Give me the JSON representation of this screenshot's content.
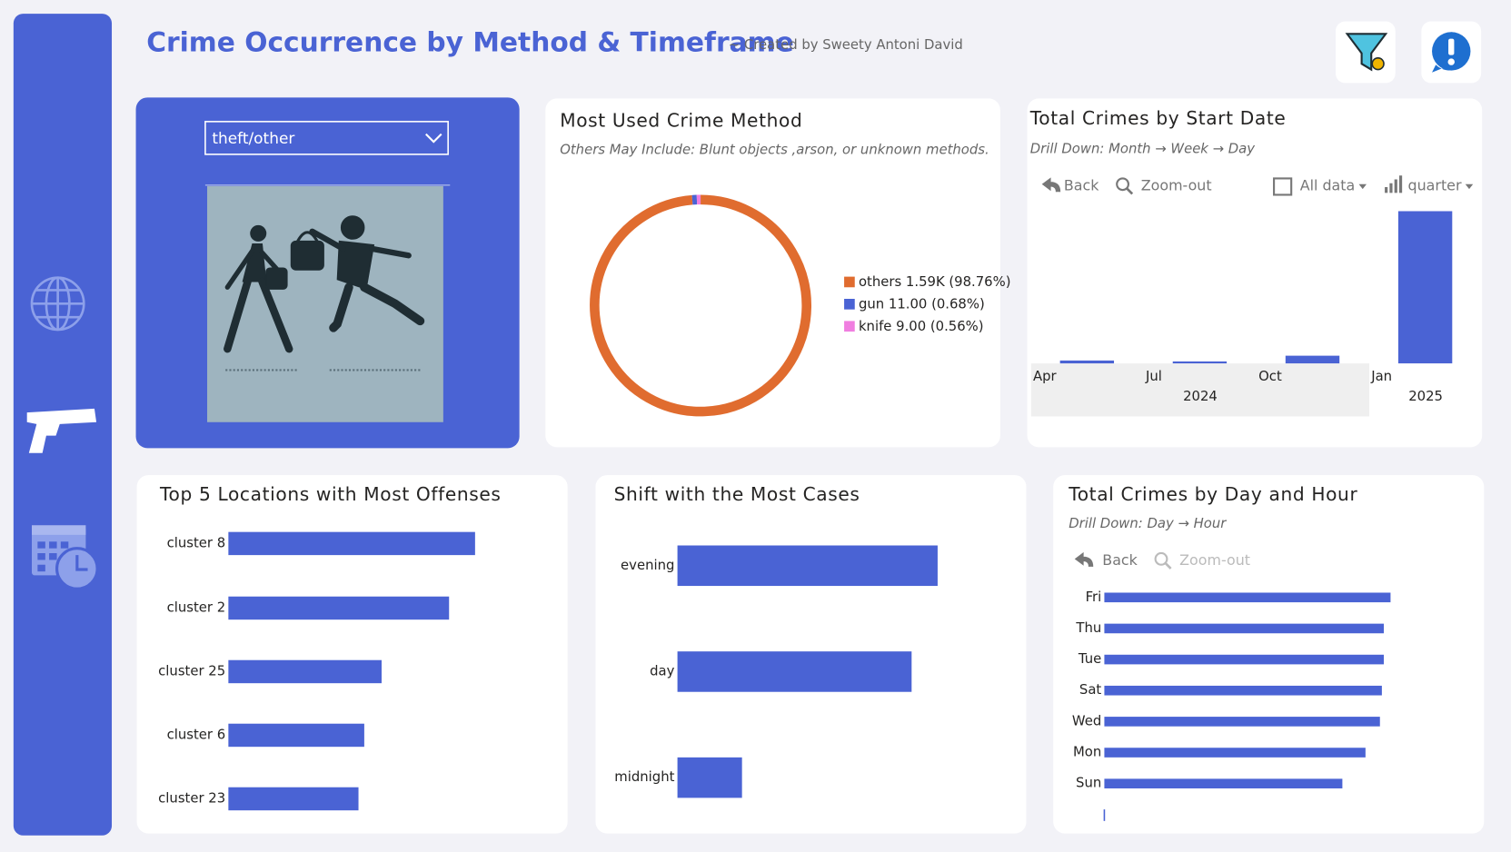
{
  "header": {
    "title": "Crime Occurrence by Method & Timeframe",
    "subtitle": "~ Created by Sweety Antoni David"
  },
  "filter": {
    "selected": "theft/other"
  },
  "chart_data": [
    {
      "type": "donut",
      "title": "Most Used Crime Method",
      "subtitle": "Others May Include: Blunt objects ,arson, or unknown methods.",
      "categories": [
        "others",
        "gun",
        "knife"
      ],
      "values": [
        1590,
        11,
        9
      ],
      "value_labels": [
        "1.59K (98.76%)",
        "11.00 (0.68%)",
        "9.00 (0.56%)"
      ],
      "colors": [
        "#e06c2f",
        "#4a63d4",
        "#f07ee0"
      ],
      "legend": "right"
    },
    {
      "type": "bar",
      "title": "Total Crimes by Start Date",
      "subtitle": "Drill Down: Month → Week → Day",
      "controls": [
        "Back",
        "Zoom-out",
        "All data",
        "quarter"
      ],
      "categories": [
        "Apr",
        "Jul",
        "Oct",
        "Jan"
      ],
      "category_groups": [
        "2024",
        "2024",
        "2024",
        "2025"
      ],
      "groups": [
        "2024",
        "2025"
      ],
      "values": [
        28,
        19,
        75,
        1488
      ],
      "color": "#4a63d4"
    },
    {
      "type": "barh",
      "title": "Top 5 Locations with Most Offenses",
      "categories": [
        "cluster 8",
        "cluster 2",
        "cluster 25",
        "cluster 6",
        "cluster 23"
      ],
      "values": [
        256,
        229,
        159,
        141,
        135
      ],
      "color": "#4a63d4"
    },
    {
      "type": "barh",
      "title": "Shift with the Most Cases",
      "categories": [
        "evening",
        "day",
        "midnight"
      ],
      "values": [
        270,
        243,
        67
      ],
      "color": "#4a63d4"
    },
    {
      "type": "barh",
      "title": "Total Crimes by Day and Hour",
      "subtitle": "Drill Down: Day → Hour",
      "controls": [
        "Back",
        "Zoom-out"
      ],
      "categories": [
        "Fri",
        "Thu",
        "Tue",
        "Sat",
        "Wed",
        "Mon",
        "Sun"
      ],
      "values": [
        297,
        290,
        290,
        288,
        286,
        271,
        247
      ],
      "color": "#4a63d4"
    }
  ]
}
